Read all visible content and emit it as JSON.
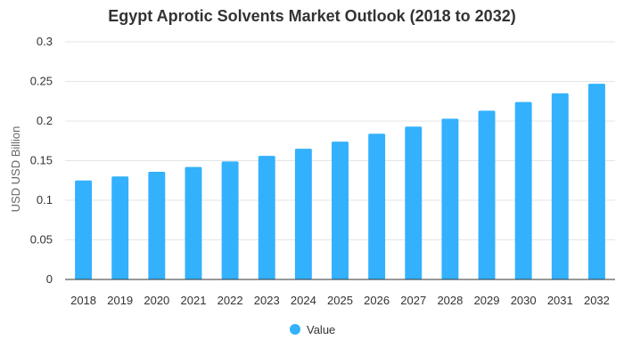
{
  "chart_data": {
    "type": "bar",
    "title": "Egypt Aprotic Solvents Market Outlook (2018 to 2032)",
    "xlabel": "",
    "ylabel": "USD USD Billion",
    "categories": [
      "2018",
      "2019",
      "2020",
      "2021",
      "2022",
      "2023",
      "2024",
      "2025",
      "2026",
      "2027",
      "2028",
      "2029",
      "2030",
      "2031",
      "2032"
    ],
    "series": [
      {
        "name": "Value",
        "values": [
          0.125,
          0.13,
          0.136,
          0.142,
          0.149,
          0.156,
          0.165,
          0.174,
          0.184,
          0.193,
          0.203,
          0.213,
          0.224,
          0.235,
          0.247
        ]
      }
    ],
    "ylim": [
      0,
      0.3
    ],
    "yticks": [
      "0",
      "0.05",
      "0.1",
      "0.15",
      "0.2",
      "0.25",
      "0.3"
    ],
    "ytick_values": [
      0,
      0.05,
      0.1,
      0.15,
      0.2,
      0.25,
      0.3
    ],
    "grid": true,
    "legend_position": "bottom",
    "colors": {
      "bar": "#33b1fd",
      "grid": "#e5e5e5",
      "axis": "#333333"
    }
  }
}
